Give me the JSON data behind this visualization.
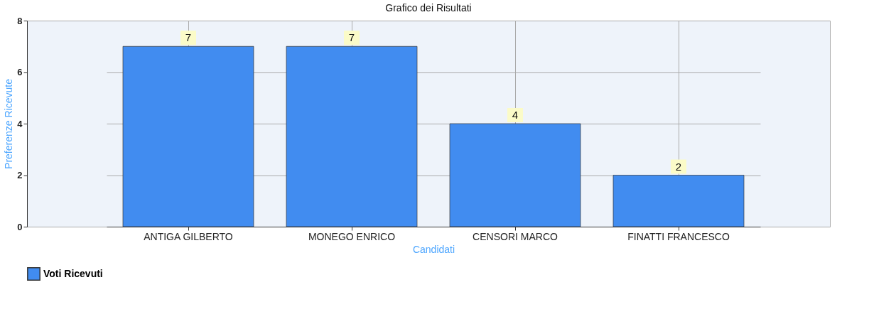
{
  "chart_data": {
    "type": "bar",
    "title": "Grafico dei Risultati",
    "xlabel": "Candidati",
    "ylabel": "Preferenze Ricevute",
    "categories": [
      "ANTIGA GILBERTO",
      "MONEGO ENRICO",
      "CENSORI MARCO",
      "FINATTI FRANCESCO"
    ],
    "series": [
      {
        "name": "Voti Ricevuti",
        "color": "#418cf0",
        "values": [
          7,
          7,
          4,
          2
        ]
      }
    ],
    "ylim": [
      0,
      8
    ],
    "yticks": [
      0,
      2,
      4,
      6,
      8
    ],
    "grid": true,
    "legend": "bottom",
    "data_labels": true
  }
}
